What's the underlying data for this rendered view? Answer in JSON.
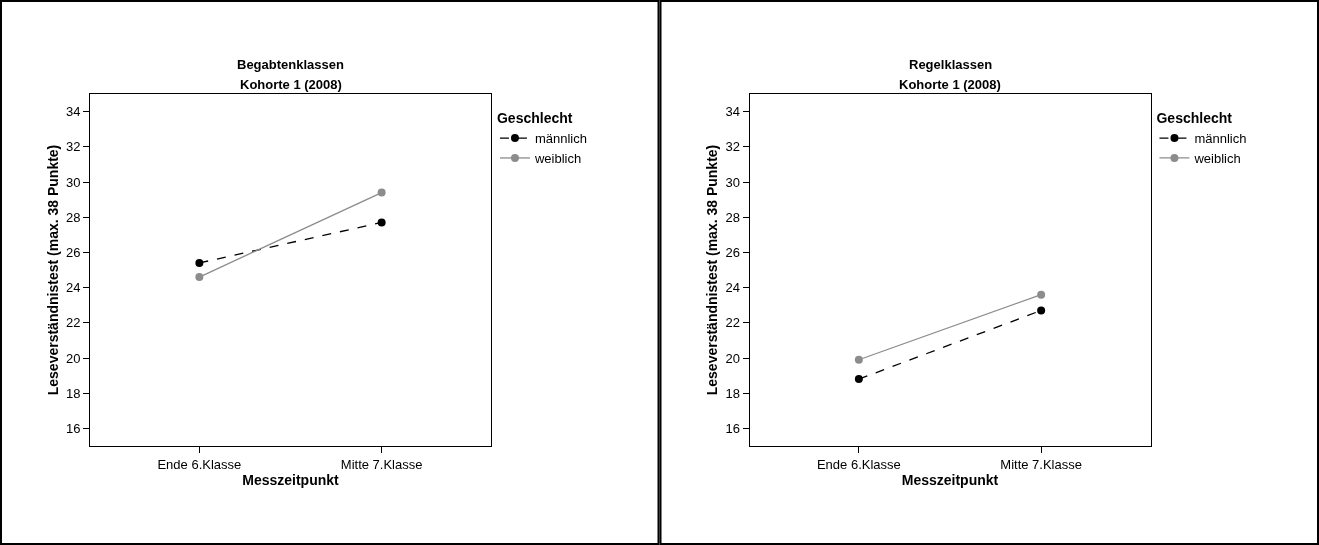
{
  "chart_data": [
    {
      "type": "line",
      "title": "Begabtenklassen",
      "subtitle": "Kohorte 1 (2008)",
      "xlabel": "Messzeitpunkt",
      "ylabel": "Leseverständnistest (max. 38 Punkte)",
      "legend_title": "Geschlecht",
      "categories": [
        "Ende 6.Klasse",
        "Mitte 7.Klasse"
      ],
      "series": [
        {
          "name": "männlich",
          "color": "#000000",
          "line_style": "dashed",
          "values": [
            25.4,
            27.7
          ]
        },
        {
          "name": "weiblich",
          "color": "#8c8c8c",
          "line_style": "solid",
          "values": [
            24.6,
            29.4
          ]
        }
      ],
      "ylim": [
        15,
        35
      ],
      "yticks": [
        16,
        18,
        20,
        22,
        24,
        26,
        28,
        30,
        32,
        34
      ],
      "legend": "right",
      "marker": "circle"
    },
    {
      "type": "line",
      "title": "Regelklassen",
      "subtitle": "Kohorte 1 (2008)",
      "xlabel": "Messzeitpunkt",
      "ylabel": "Leseverständnistest (max. 38 Punkte)",
      "legend_title": "Geschlecht",
      "categories": [
        "Ende 6.Klasse",
        "Mitte 7.Klasse"
      ],
      "series": [
        {
          "name": "männlich",
          "color": "#000000",
          "line_style": "dashed",
          "values": [
            18.8,
            22.7
          ]
        },
        {
          "name": "weiblich",
          "color": "#8c8c8c",
          "line_style": "solid",
          "values": [
            19.9,
            23.6
          ]
        }
      ],
      "ylim": [
        15,
        35
      ],
      "yticks": [
        16,
        18,
        20,
        22,
        24,
        26,
        28,
        30,
        32,
        34
      ],
      "legend": "right",
      "marker": "circle"
    }
  ]
}
